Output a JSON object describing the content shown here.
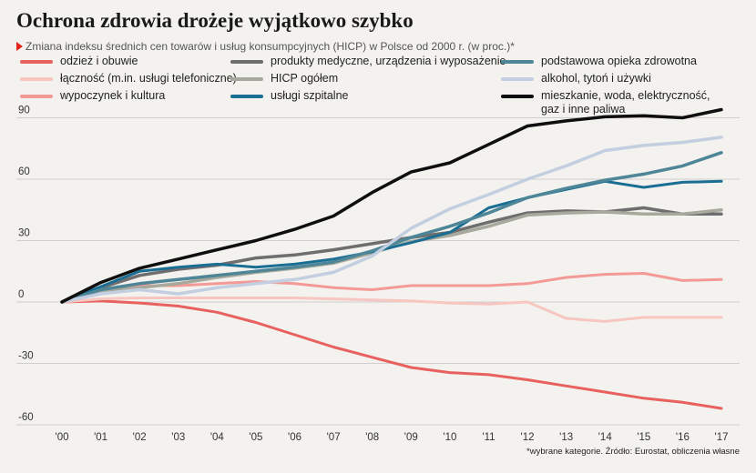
{
  "title": "Ochrona zdrowia drożeje wyjątkowo szybko",
  "subtitle": "Zmiana indeksu średnich cen towarów i usług konsumpcyjnych (HICP) w Polsce od 2000 r. (w proc.)*",
  "source_note": "*wybrane kategorie. Źródło: Eurostat, obliczenia własne",
  "chart_data": {
    "type": "line",
    "title": "Ochrona zdrowia drożeje wyjątkowo szybko",
    "subtitle": "Zmiana indeksu średnich cen towarów i usług konsumpcyjnych (HICP) w Polsce od 2000 r. (w proc.)*",
    "x": [
      "'00",
      "'01",
      "'02",
      "'03",
      "'04",
      "'05",
      "'06",
      "'07",
      "'08",
      "'09",
      "'10",
      "'11",
      "'12",
      "'13",
      "'14",
      "'15",
      "'16",
      "'17"
    ],
    "y_ticks": [
      90,
      60,
      30,
      0,
      -30,
      -60
    ],
    "ylim": [
      -60,
      95
    ],
    "grid": true,
    "legend_position": "top",
    "series": [
      {
        "name": "odzież i obuwie",
        "color": "#e8615f",
        "width": 3,
        "values": [
          0,
          0.5,
          -0.5,
          -2,
          -5,
          -10,
          -16,
          -22,
          -27,
          -32,
          -34.5,
          -35.5,
          -38,
          -41,
          -44,
          -47,
          -49,
          -52
        ]
      },
      {
        "name": "łączność (m.in. usługi telefoniczne)",
        "color": "#f7c6c0",
        "width": 3,
        "values": [
          0,
          1.5,
          2,
          2,
          2,
          2,
          2,
          1.5,
          1,
          0.5,
          -0.5,
          -1,
          0,
          -8,
          -9.5,
          -7.5,
          -7.5,
          -7.5
        ]
      },
      {
        "name": "wypoczynek i kultura",
        "color": "#f39a97",
        "width": 3,
        "values": [
          0,
          5,
          8,
          8,
          9,
          10,
          9,
          7,
          6,
          8,
          8,
          8,
          9,
          12,
          13.5,
          14,
          10.5,
          11
        ]
      },
      {
        "name": "produkty medyczne, urządzenia i wyposażenie",
        "color": "#6e6e6e",
        "width": 3.5,
        "values": [
          0,
          7,
          13,
          16,
          18,
          21.5,
          23,
          25.5,
          28.5,
          31.5,
          34,
          39,
          43.5,
          44.5,
          44,
          46,
          43,
          43
        ]
      },
      {
        "name": "HICP ogółem",
        "color": "#a7a99c",
        "width": 3.5,
        "values": [
          0,
          5,
          7,
          9,
          12,
          14.5,
          16.5,
          19,
          24,
          29.5,
          32.5,
          37,
          42.5,
          43.5,
          44,
          43,
          43,
          45
        ]
      },
      {
        "name": "usługi szpitalne",
        "color": "#1a6e93",
        "width": 3,
        "values": [
          0,
          7.5,
          15,
          17,
          18.5,
          17,
          18.5,
          21,
          24.5,
          29,
          34,
          46,
          51,
          55,
          59,
          56,
          58.5,
          59
        ]
      },
      {
        "name": "podstawowa opieka zdrowotna",
        "color": "#4e8698",
        "width": 3.5,
        "values": [
          0,
          6,
          9,
          11,
          13,
          15,
          17,
          19.5,
          25,
          31.5,
          37,
          43.5,
          51,
          55.5,
          59.5,
          62.5,
          66.5,
          73
        ]
      },
      {
        "name": "alkohol, tytoń i używki",
        "color": "#c3cee0",
        "width": 3.5,
        "values": [
          0,
          4,
          6,
          4,
          7,
          9,
          11,
          14.5,
          22.5,
          36,
          45.5,
          52.5,
          60,
          66.5,
          74,
          76.5,
          78,
          80.5
        ]
      },
      {
        "name": "mieszkanie, woda, elektryczność, gaz i inne paliwa",
        "color": "#0f0f0f",
        "width": 3.5,
        "values": [
          0,
          9.5,
          16.5,
          21,
          25.5,
          30,
          35.5,
          42,
          53.5,
          63.5,
          68,
          77,
          86,
          88.5,
          90.5,
          91,
          90,
          94
        ]
      }
    ]
  }
}
